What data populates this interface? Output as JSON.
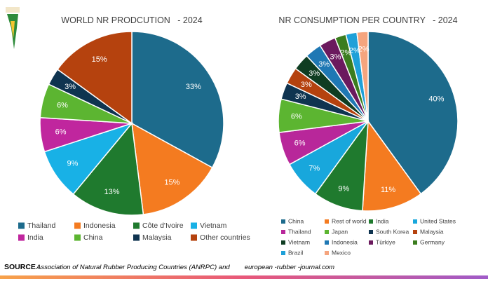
{
  "chart_data": [
    {
      "type": "pie",
      "title": "WORLD NR PRODCUTION   - 2024",
      "categories": [
        "Thailand",
        "Indonesia",
        "Côte d'Ivoire",
        "Vietnam",
        "India",
        "China",
        "Malaysia",
        "Other countries"
      ],
      "values": [
        33,
        15,
        13,
        9,
        6,
        6,
        3,
        15
      ],
      "value_labels": [
        "33%",
        "15%",
        "13%",
        "9%",
        "6%",
        "6%",
        "3%",
        "15%"
      ],
      "colors": [
        "#1d6b8c",
        "#f47b20",
        "#1f7a2e",
        "#18b1e6",
        "#c0269e",
        "#5cb531",
        "#0f3450",
        "#b5420e"
      ]
    },
    {
      "type": "pie",
      "title": "NR CONSUMPTION PER COUNTRY   - 2024",
      "categories": [
        "China",
        "Rest of world",
        "India",
        "United States",
        "Thailand",
        "Japan",
        "South Korea",
        "Malaysia",
        "Vietnam",
        "Indonesia",
        "Türkiye",
        "Germany",
        "Brazil",
        "Mexico"
      ],
      "values": [
        40,
        11,
        9,
        7,
        6,
        6,
        3,
        3,
        3,
        3,
        3,
        2,
        2,
        2
      ],
      "value_labels": [
        "40%",
        "11%",
        "9%",
        "7%",
        "6%",
        "6%",
        "3%",
        "3%",
        "3%",
        "3%",
        "3%",
        "2%",
        "2%",
        "2%"
      ],
      "colors": [
        "#1d6b8c",
        "#f47b20",
        "#1f7a2e",
        "#18a7dc",
        "#b8279a",
        "#5cb531",
        "#0f3450",
        "#b5420e",
        "#0f3d22",
        "#1f78b4",
        "#6b1a5e",
        "#3b7d1e",
        "#1ea0d8",
        "#f5a57e"
      ]
    }
  ],
  "footer": {
    "label": "SOURCE :",
    "text": "Association of Natural Rubber Producing Countries (ANRPC) and        european -rubber -journal.com"
  }
}
